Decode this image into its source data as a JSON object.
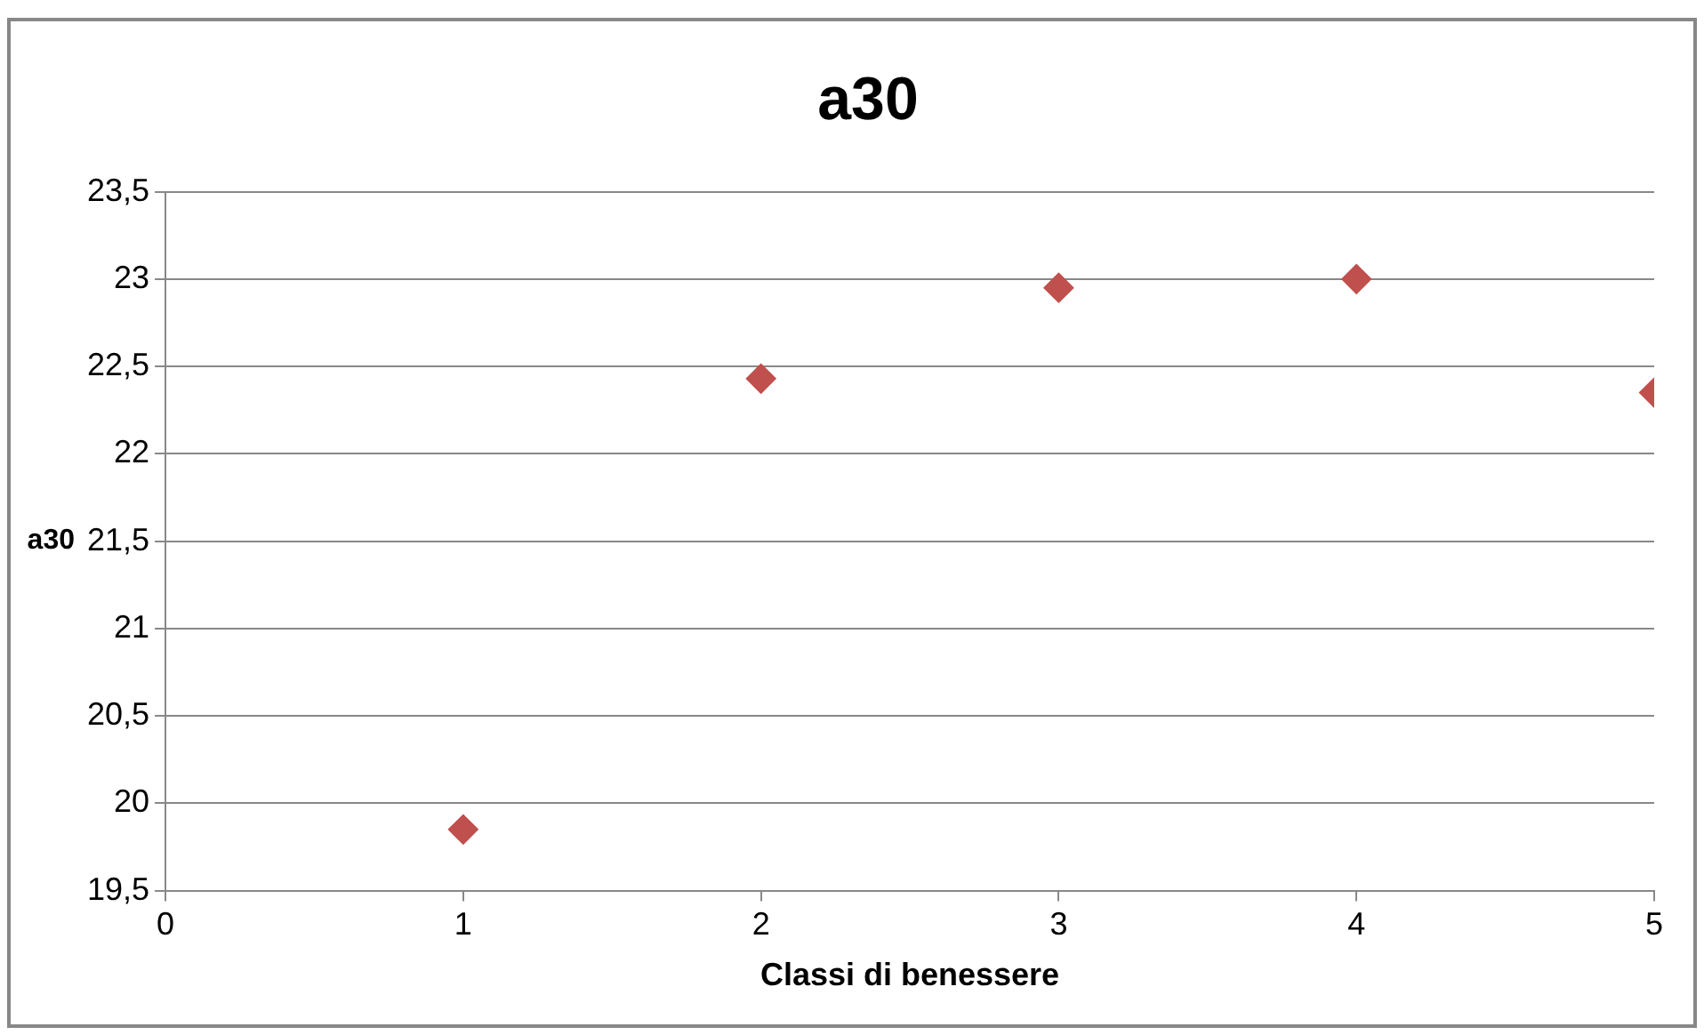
{
  "chart_data": {
    "type": "scatter",
    "title": "a30",
    "xlabel": "Classi di benessere",
    "ylabel": "a30",
    "x": [
      1,
      2,
      3,
      4,
      5
    ],
    "series": [
      {
        "color": "#c0504d",
        "values": [
          19.85,
          22.43,
          22.95,
          23.0,
          22.35
        ]
      }
    ],
    "xlim": [
      0,
      5
    ],
    "xticks": [
      0,
      1,
      2,
      3,
      4,
      5
    ],
    "ylim": [
      19.5,
      23.5
    ],
    "yticks": [
      {
        "value": 19.5,
        "label": "19,5"
      },
      20,
      {
        "value": 20.5,
        "label": "20,5"
      },
      21,
      {
        "value": 21.5,
        "label": "21,5"
      },
      22,
      {
        "value": 22.5,
        "label": "22,5"
      },
      23,
      {
        "value": 23.5,
        "label": "23,5"
      }
    ],
    "grid": "y",
    "legend": false,
    "marker": "diamond"
  }
}
